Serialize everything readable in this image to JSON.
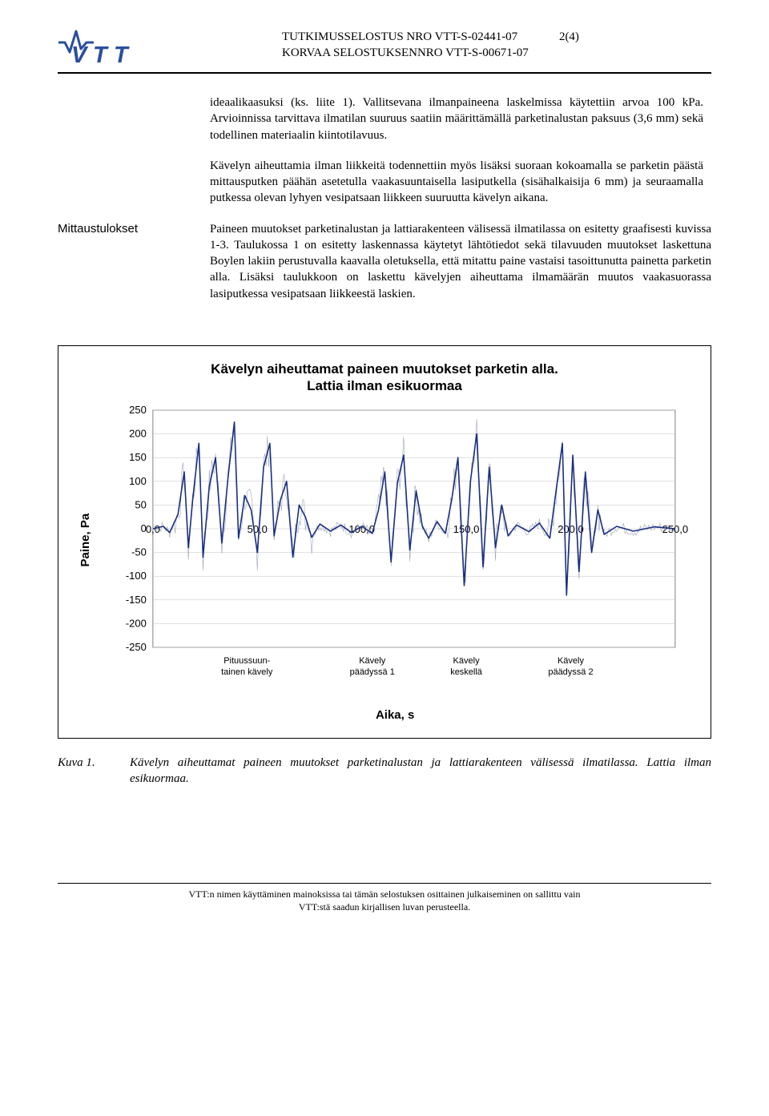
{
  "header": {
    "report_line1": "TUTKIMUSSELOSTUS NRO VTT-S-02441-07",
    "report_line2": "KORVAA SELOSTUKSENNRO VTT-S-00671-07",
    "page_num": "2(4)"
  },
  "body": {
    "para1": "ideaalikaasuksi (ks. liite 1). Vallitsevana ilmanpaineena laskelmissa käytettiin arvoa 100 kPa. Arvioinnissa tarvittava ilmatilan suuruus saatiin määrittämällä parketinalustan paksuus (3,6 mm) sekä todellinen materiaalin kiintotilavuus.",
    "para2": "Kävelyn aiheuttamia ilman liikkeitä todennettiin myös lisäksi suoraan kokoamalla se parketin päästä mittausputken päähän asetetulla vaakasuuntaisella lasiputkella (sisähalkaisija 6 mm) ja seuraamalla putkessa olevan lyhyen vesipatsaan liikkeen suuruutta kävelyn aikana.",
    "section_label": "Mittaustulokset",
    "para3": "Paineen muutokset parketinalustan ja lattiarakenteen välisessä ilmatilassa on esitetty graafisesti kuvissa 1-3. Taulukossa 1 on esitetty laskennassa käytetyt lähtötiedot sekä tilavuuden muutokset laskettuna Boylen lakiin perustuvalla kaavalla oletuksella, että mitattu paine vastaisi tasoittunutta painetta parketin alla. Lisäksi taulukkoon on laskettu kävelyjen aiheuttama ilmamäärän muutos vaakasuorassa lasiputkessa vesipatsaan liikkeestä laskien."
  },
  "chart": {
    "type": "line",
    "title_l1": "Kävelyn aiheuttamat paineen muutokset parketin alla.",
    "title_l2": "Lattia ilman esikuormaa",
    "ylabel": "Paine, Pa",
    "xlabel": "Aika, s",
    "ylim": [
      -250,
      250
    ],
    "ytick_step": 50,
    "yticks": [
      "250",
      "200",
      "150",
      "100",
      "50",
      "0",
      "-50",
      "-100",
      "-150",
      "-200",
      "-250"
    ],
    "xlim": [
      0,
      250
    ],
    "xtick_step": 50,
    "xticks": [
      "0,0",
      "50,0",
      "100,0",
      "150,0",
      "200,0",
      "250,0"
    ],
    "background_color": "#ffffff",
    "plot_border_color": "#808080",
    "grid_color": "#c0c0c0",
    "series_colors": {
      "raw": "#9fa7b8",
      "mean": "#1a2f82"
    },
    "line_width_raw": 0.6,
    "line_width_mean": 1.6,
    "annotations": [
      {
        "label_l1": "Pituussuun-",
        "label_l2": "tainen  kävely",
        "x": 45
      },
      {
        "label_l1": "Kävely",
        "label_l2": "päädyssä 1",
        "x": 105
      },
      {
        "label_l1": "Kävely",
        "label_l2": "keskellä",
        "x": 150
      },
      {
        "label_l1": "Kävely",
        "label_l2": "päädyssä 2",
        "x": 200
      }
    ],
    "anno_fontsize": 11,
    "dataset_mean": [
      [
        0,
        0
      ],
      [
        5,
        5
      ],
      [
        8,
        -8
      ],
      [
        12,
        30
      ],
      [
        15,
        120
      ],
      [
        17,
        -40
      ],
      [
        19,
        60
      ],
      [
        22,
        180
      ],
      [
        24,
        -60
      ],
      [
        27,
        90
      ],
      [
        30,
        150
      ],
      [
        33,
        -30
      ],
      [
        36,
        110
      ],
      [
        39,
        225
      ],
      [
        41,
        -20
      ],
      [
        44,
        70
      ],
      [
        47,
        40
      ],
      [
        50,
        -50
      ],
      [
        53,
        130
      ],
      [
        56,
        180
      ],
      [
        58,
        -15
      ],
      [
        61,
        60
      ],
      [
        64,
        100
      ],
      [
        67,
        -60
      ],
      [
        70,
        50
      ],
      [
        73,
        25
      ],
      [
        76,
        -18
      ],
      [
        80,
        10
      ],
      [
        85,
        -5
      ],
      [
        90,
        8
      ],
      [
        95,
        -8
      ],
      [
        100,
        5
      ],
      [
        105,
        -10
      ],
      [
        108,
        40
      ],
      [
        111,
        120
      ],
      [
        114,
        -70
      ],
      [
        117,
        95
      ],
      [
        120,
        155
      ],
      [
        123,
        -45
      ],
      [
        126,
        80
      ],
      [
        129,
        5
      ],
      [
        132,
        -20
      ],
      [
        136,
        15
      ],
      [
        140,
        -10
      ],
      [
        143,
        60
      ],
      [
        146,
        150
      ],
      [
        149,
        -120
      ],
      [
        152,
        100
      ],
      [
        155,
        200
      ],
      [
        158,
        -80
      ],
      [
        161,
        130
      ],
      [
        164,
        -40
      ],
      [
        167,
        50
      ],
      [
        170,
        -15
      ],
      [
        174,
        8
      ],
      [
        180,
        -6
      ],
      [
        185,
        12
      ],
      [
        190,
        -20
      ],
      [
        193,
        80
      ],
      [
        196,
        180
      ],
      [
        198,
        -140
      ],
      [
        201,
        155
      ],
      [
        204,
        -90
      ],
      [
        207,
        120
      ],
      [
        210,
        -50
      ],
      [
        213,
        40
      ],
      [
        216,
        -12
      ],
      [
        222,
        5
      ],
      [
        230,
        -5
      ],
      [
        240,
        4
      ],
      [
        250,
        0
      ]
    ]
  },
  "caption": {
    "label": "Kuva 1.",
    "text": "Kävelyn aiheuttamat paineen muutokset parketinalustan ja lattiarakenteen välisessä ilmatilassa. Lattia ilman esikuormaa."
  },
  "footer": {
    "l1": "VTT:n nimen käyttäminen mainoksissa tai tämän selostuksen osittainen julkaiseminen on sallittu vain",
    "l2": "VTT:stä saadun kirjallisen luvan perusteella."
  }
}
